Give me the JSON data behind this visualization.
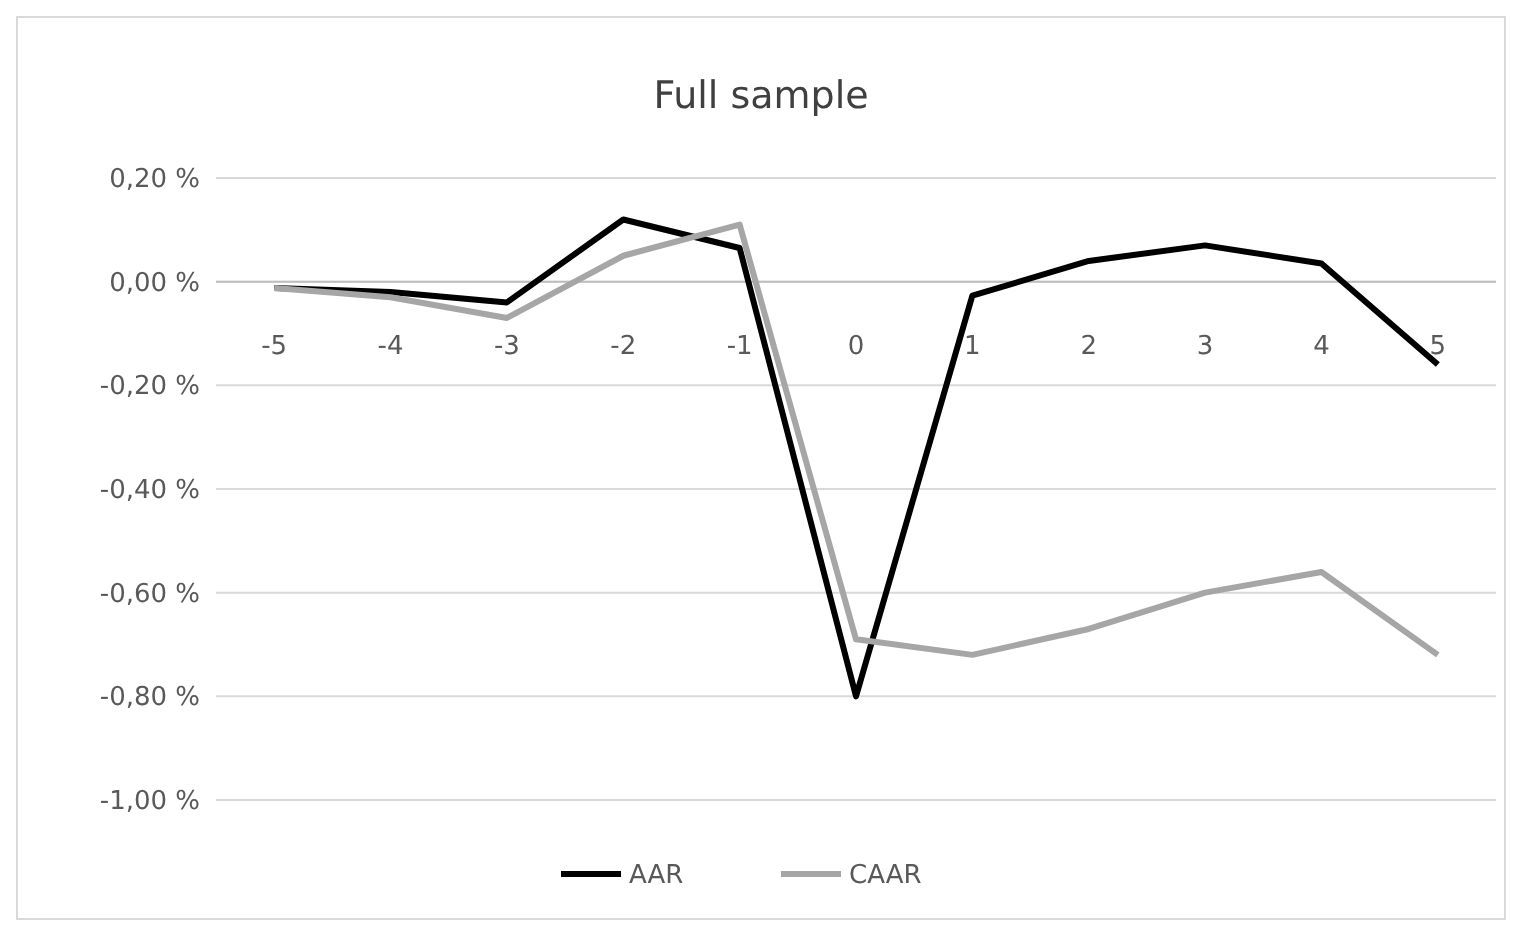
{
  "chart_data": {
    "type": "line",
    "title": "Full sample",
    "categories": [
      "-5",
      "-4",
      "-3",
      "-2",
      "-1",
      "0",
      "1",
      "2",
      "3",
      "4",
      "5"
    ],
    "series": [
      {
        "name": "AAR",
        "color": "#000000",
        "values": [
          -0.012,
          -0.02,
          -0.04,
          0.12,
          0.065,
          -0.8,
          -0.027,
          0.04,
          0.07,
          0.035,
          -0.16
        ]
      },
      {
        "name": "CAAR",
        "color": "#a6a6a6",
        "values": [
          -0.012,
          -0.03,
          -0.07,
          0.05,
          0.11,
          -0.69,
          -0.72,
          -0.67,
          -0.6,
          -0.56,
          -0.72
        ]
      }
    ],
    "ylim": [
      -1,
      0.2
    ],
    "yticks": [
      {
        "value": 0.2,
        "label": "0,20 %"
      },
      {
        "value": 0,
        "label": "0,00 %"
      },
      {
        "value": -0.2,
        "label": "-0,20 %"
      },
      {
        "value": -0.4,
        "label": "-0,40 %"
      },
      {
        "value": -0.6,
        "label": "-0,60 %"
      },
      {
        "value": -0.8,
        "label": "-0,80 %"
      },
      {
        "value": -1,
        "label": "-1,00 %"
      }
    ],
    "grid": "y",
    "legend": "bottom",
    "marker": "none",
    "line_style": "solid"
  }
}
